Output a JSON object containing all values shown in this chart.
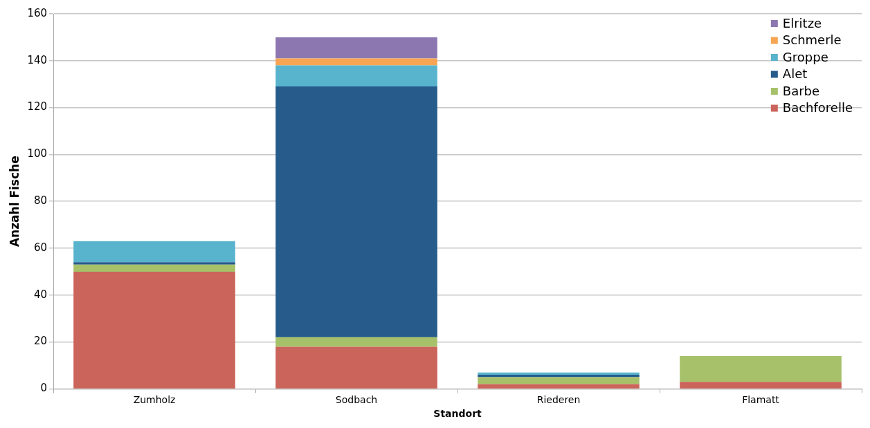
{
  "chart_data": {
    "type": "bar",
    "stacked": true,
    "xlabel": "Standort",
    "ylabel": "Anzahl Fische",
    "categories": [
      "Zumholz",
      "Sodbach",
      "Riederen",
      "Flamatt"
    ],
    "series": [
      {
        "name": "Bachforelle",
        "color": "#cb645a",
        "values": [
          50,
          18,
          2,
          3
        ]
      },
      {
        "name": "Barbe",
        "color": "#a6c169",
        "values": [
          3,
          4,
          3,
          11
        ]
      },
      {
        "name": "Alet",
        "color": "#265b8c",
        "values": [
          1,
          107,
          1,
          0
        ]
      },
      {
        "name": "Groppe",
        "color": "#58b3cc",
        "values": [
          9,
          9,
          1,
          0
        ]
      },
      {
        "name": "Schmerle",
        "color": "#f7a553",
        "values": [
          0,
          3,
          0,
          0
        ]
      },
      {
        "name": "Elritze",
        "color": "#8c77b0",
        "values": [
          0,
          9,
          0,
          0
        ]
      }
    ],
    "ylim": [
      0,
      160
    ],
    "yticks": [
      0,
      20,
      40,
      60,
      80,
      100,
      120,
      140,
      160
    ],
    "grid": "y",
    "legend": "top right"
  }
}
